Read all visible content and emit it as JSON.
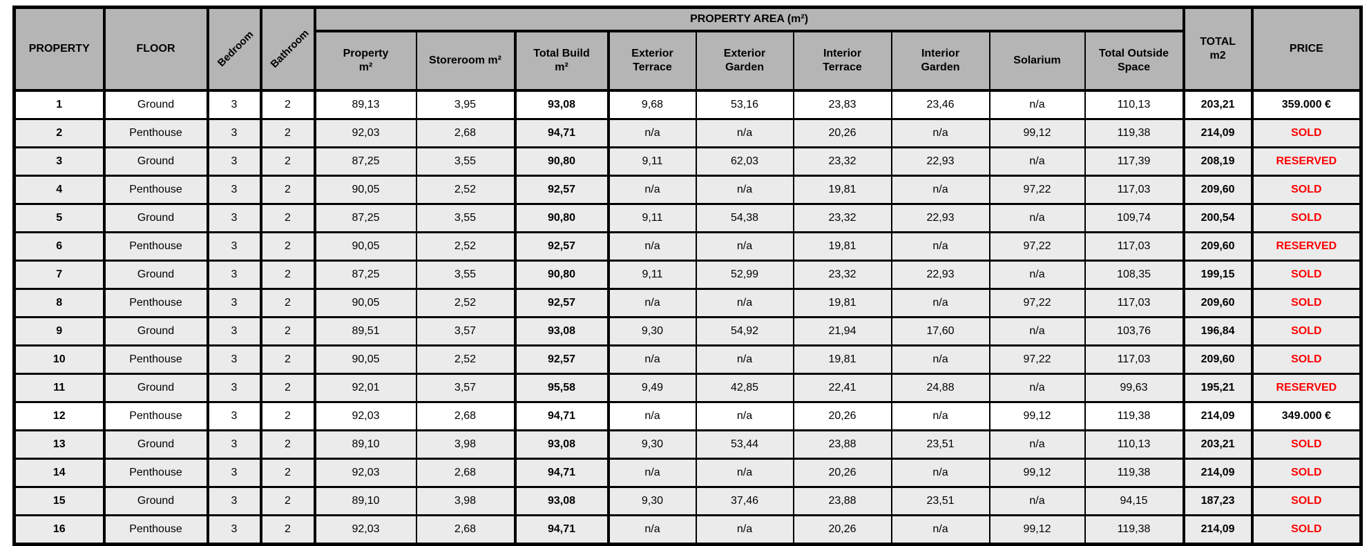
{
  "table": {
    "group_header": "PROPERTY AREA (m²)",
    "columns": [
      {
        "key": "property",
        "label": "PROPERTY"
      },
      {
        "key": "floor",
        "label": "FLOOR"
      },
      {
        "key": "bedroom",
        "label": "Bedroom"
      },
      {
        "key": "bathroom",
        "label": "Bathroom"
      },
      {
        "key": "property-m2",
        "label": "Property\nm²"
      },
      {
        "key": "storeroom-m2",
        "label": "Storeroom m²"
      },
      {
        "key": "total-build-m2",
        "label": "Total Build\nm²"
      },
      {
        "key": "exterior-terrace",
        "label": "Exterior\nTerrace"
      },
      {
        "key": "exterior-garden",
        "label": "Exterior\nGarden"
      },
      {
        "key": "interior-terrace",
        "label": "Interior\nTerrace"
      },
      {
        "key": "interior-garden",
        "label": "Interior\nGarden"
      },
      {
        "key": "solarium",
        "label": "Solarium"
      },
      {
        "key": "total-outside-space",
        "label": "Total Outside\nSpace"
      },
      {
        "key": "total-m2",
        "label": "TOTAL\nm2"
      },
      {
        "key": "price",
        "label": "PRICE"
      }
    ],
    "colors": {
      "header_bg": "#b5b5b5",
      "row_gray_bg": "#ebebeb",
      "row_white_bg": "#ffffff",
      "status_red": "#ff0000",
      "border": "#000000"
    },
    "rows": [
      {
        "shade": "white",
        "status": "available",
        "values": [
          "1",
          "Ground",
          "3",
          "2",
          "89,13",
          "3,95",
          "93,08",
          "9,68",
          "53,16",
          "23,83",
          "23,46",
          "n/a",
          "110,13",
          "203,21",
          "359.000 €"
        ]
      },
      {
        "shade": "gray",
        "status": "sold",
        "values": [
          "2",
          "Penthouse",
          "3",
          "2",
          "92,03",
          "2,68",
          "94,71",
          "n/a",
          "n/a",
          "20,26",
          "n/a",
          "99,12",
          "119,38",
          "214,09",
          "SOLD"
        ]
      },
      {
        "shade": "gray",
        "status": "reserved",
        "values": [
          "3",
          "Ground",
          "3",
          "2",
          "87,25",
          "3,55",
          "90,80",
          "9,11",
          "62,03",
          "23,32",
          "22,93",
          "n/a",
          "117,39",
          "208,19",
          "RESERVED"
        ]
      },
      {
        "shade": "gray",
        "status": "sold",
        "values": [
          "4",
          "Penthouse",
          "3",
          "2",
          "90,05",
          "2,52",
          "92,57",
          "n/a",
          "n/a",
          "19,81",
          "n/a",
          "97,22",
          "117,03",
          "209,60",
          "SOLD"
        ]
      },
      {
        "shade": "gray",
        "status": "sold",
        "values": [
          "5",
          "Ground",
          "3",
          "2",
          "87,25",
          "3,55",
          "90,80",
          "9,11",
          "54,38",
          "23,32",
          "22,93",
          "n/a",
          "109,74",
          "200,54",
          "SOLD"
        ]
      },
      {
        "shade": "gray",
        "status": "reserved",
        "values": [
          "6",
          "Penthouse",
          "3",
          "2",
          "90,05",
          "2,52",
          "92,57",
          "n/a",
          "n/a",
          "19,81",
          "n/a",
          "97,22",
          "117,03",
          "209,60",
          "RESERVED"
        ]
      },
      {
        "shade": "gray",
        "status": "sold",
        "values": [
          "7",
          "Ground",
          "3",
          "2",
          "87,25",
          "3,55",
          "90,80",
          "9,11",
          "52,99",
          "23,32",
          "22,93",
          "n/a",
          "108,35",
          "199,15",
          "SOLD"
        ]
      },
      {
        "shade": "gray",
        "status": "sold",
        "values": [
          "8",
          "Penthouse",
          "3",
          "2",
          "90,05",
          "2,52",
          "92,57",
          "n/a",
          "n/a",
          "19,81",
          "n/a",
          "97,22",
          "117,03",
          "209,60",
          "SOLD"
        ]
      },
      {
        "shade": "gray",
        "status": "sold",
        "values": [
          "9",
          "Ground",
          "3",
          "2",
          "89,51",
          "3,57",
          "93,08",
          "9,30",
          "54,92",
          "21,94",
          "17,60",
          "n/a",
          "103,76",
          "196,84",
          "SOLD"
        ]
      },
      {
        "shade": "gray",
        "status": "sold",
        "values": [
          "10",
          "Penthouse",
          "3",
          "2",
          "90,05",
          "2,52",
          "92,57",
          "n/a",
          "n/a",
          "19,81",
          "n/a",
          "97,22",
          "117,03",
          "209,60",
          "SOLD"
        ]
      },
      {
        "shade": "gray",
        "status": "reserved",
        "values": [
          "11",
          "Ground",
          "3",
          "2",
          "92,01",
          "3,57",
          "95,58",
          "9,49",
          "42,85",
          "22,41",
          "24,88",
          "n/a",
          "99,63",
          "195,21",
          "RESERVED"
        ]
      },
      {
        "shade": "white",
        "status": "available",
        "values": [
          "12",
          "Penthouse",
          "3",
          "2",
          "92,03",
          "2,68",
          "94,71",
          "n/a",
          "n/a",
          "20,26",
          "n/a",
          "99,12",
          "119,38",
          "214,09",
          "349.000 €"
        ]
      },
      {
        "shade": "gray",
        "status": "sold",
        "values": [
          "13",
          "Ground",
          "3",
          "2",
          "89,10",
          "3,98",
          "93,08",
          "9,30",
          "53,44",
          "23,88",
          "23,51",
          "n/a",
          "110,13",
          "203,21",
          "SOLD"
        ]
      },
      {
        "shade": "gray",
        "status": "sold",
        "values": [
          "14",
          "Penthouse",
          "3",
          "2",
          "92,03",
          "2,68",
          "94,71",
          "n/a",
          "n/a",
          "20,26",
          "n/a",
          "99,12",
          "119,38",
          "214,09",
          "SOLD"
        ]
      },
      {
        "shade": "gray",
        "status": "sold",
        "values": [
          "15",
          "Ground",
          "3",
          "2",
          "89,10",
          "3,98",
          "93,08",
          "9,30",
          "37,46",
          "23,88",
          "23,51",
          "n/a",
          "94,15",
          "187,23",
          "SOLD"
        ]
      },
      {
        "shade": "gray",
        "status": "sold",
        "values": [
          "16",
          "Penthouse",
          "3",
          "2",
          "92,03",
          "2,68",
          "94,71",
          "n/a",
          "n/a",
          "20,26",
          "n/a",
          "99,12",
          "119,38",
          "214,09",
          "SOLD"
        ]
      }
    ]
  }
}
